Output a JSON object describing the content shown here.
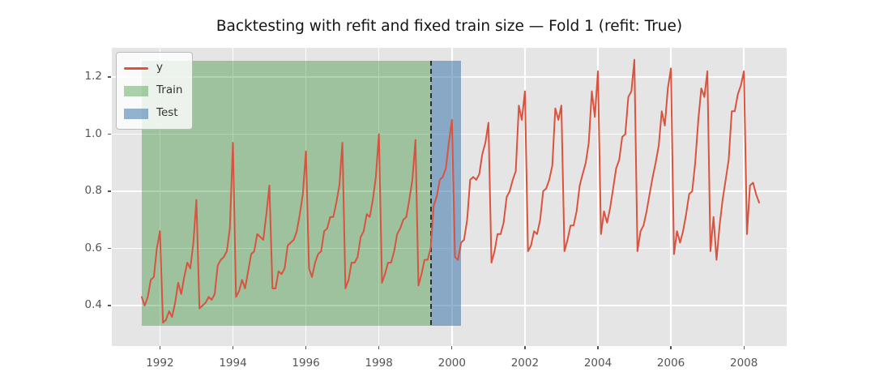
{
  "title": "Backtesting with refit and fixed train size — Fold 1 (refit: True)",
  "legend": {
    "series_label": "y",
    "train_label": "Train",
    "test_label": "Test"
  },
  "colors": {
    "line": "#d9533f",
    "train_fill": "rgba(10,118,10,0.32)",
    "test_fill": "rgba(62,119,171,0.55)",
    "plot_bg": "#e5e5e5",
    "grid": "#ffffff",
    "split_line": "#2e2e2e",
    "tick_text": "#555555",
    "title_text": "#141414"
  },
  "chart_data": {
    "type": "line",
    "title": "Backtesting with refit and fixed train size — Fold 1 (refit: True)",
    "xlabel": "",
    "ylabel": "",
    "x_start": "1991-07",
    "freq": "monthly",
    "x_ticks": [
      1992,
      1994,
      1996,
      1998,
      2000,
      2002,
      2004,
      2006,
      2008
    ],
    "y_ticks": [
      0.4,
      0.6,
      0.8,
      1.0,
      1.2
    ],
    "shade_ylim": [
      0.329,
      1.257
    ],
    "train_span": [
      "1991-07",
      "1999-06"
    ],
    "test_span": [
      "1999-06",
      "2000-04"
    ],
    "refit_split": "1999-06",
    "grid": true,
    "legend_position": "upper left",
    "series": [
      {
        "name": "y",
        "values": [
          0.43,
          0.4,
          0.43,
          0.49,
          0.5,
          0.6,
          0.66,
          0.34,
          0.35,
          0.38,
          0.36,
          0.41,
          0.48,
          0.44,
          0.5,
          0.55,
          0.53,
          0.62,
          0.77,
          0.39,
          0.4,
          0.41,
          0.43,
          0.42,
          0.44,
          0.54,
          0.56,
          0.57,
          0.59,
          0.67,
          0.97,
          0.43,
          0.45,
          0.49,
          0.46,
          0.52,
          0.58,
          0.59,
          0.65,
          0.64,
          0.63,
          0.72,
          0.82,
          0.46,
          0.46,
          0.52,
          0.51,
          0.53,
          0.61,
          0.62,
          0.63,
          0.66,
          0.72,
          0.79,
          0.94,
          0.53,
          0.5,
          0.55,
          0.58,
          0.59,
          0.66,
          0.67,
          0.71,
          0.71,
          0.76,
          0.82,
          0.97,
          0.46,
          0.49,
          0.55,
          0.55,
          0.57,
          0.64,
          0.66,
          0.72,
          0.71,
          0.77,
          0.85,
          1.0,
          0.48,
          0.51,
          0.55,
          0.55,
          0.59,
          0.65,
          0.67,
          0.7,
          0.71,
          0.77,
          0.84,
          0.98,
          0.47,
          0.51,
          0.56,
          0.56,
          0.6,
          0.75,
          0.78,
          0.84,
          0.85,
          0.88,
          0.97,
          1.05,
          0.57,
          0.56,
          0.62,
          0.63,
          0.7,
          0.84,
          0.85,
          0.84,
          0.86,
          0.93,
          0.97,
          1.04,
          0.55,
          0.59,
          0.65,
          0.65,
          0.69,
          0.78,
          0.8,
          0.84,
          0.87,
          1.1,
          1.05,
          1.15,
          0.59,
          0.61,
          0.66,
          0.65,
          0.7,
          0.8,
          0.81,
          0.84,
          0.89,
          1.09,
          1.05,
          1.1,
          0.59,
          0.63,
          0.68,
          0.68,
          0.73,
          0.82,
          0.86,
          0.9,
          0.97,
          1.15,
          1.06,
          1.22,
          0.65,
          0.73,
          0.69,
          0.74,
          0.81,
          0.88,
          0.91,
          0.99,
          1.0,
          1.13,
          1.15,
          1.26,
          0.59,
          0.66,
          0.68,
          0.73,
          0.79,
          0.85,
          0.9,
          0.96,
          1.08,
          1.03,
          1.16,
          1.23,
          0.58,
          0.66,
          0.62,
          0.66,
          0.72,
          0.79,
          0.8,
          0.9,
          1.05,
          1.16,
          1.13,
          1.22,
          0.59,
          0.71,
          0.56,
          0.68,
          0.77,
          0.84,
          0.91,
          1.08,
          1.08,
          1.14,
          1.17,
          1.22,
          0.65,
          0.82,
          0.83,
          0.79,
          0.76
        ]
      }
    ]
  }
}
